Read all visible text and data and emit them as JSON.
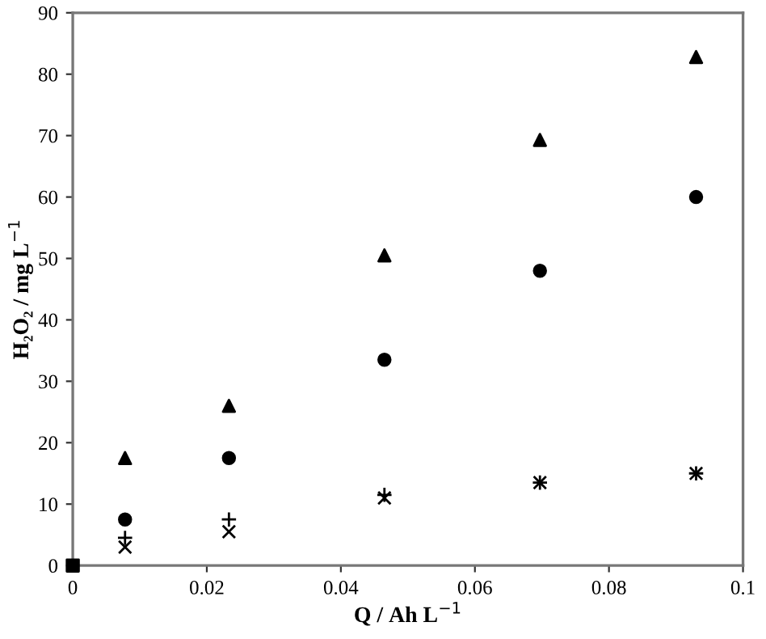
{
  "chart_data": {
    "type": "scatter",
    "xlabel": "Q / Ah L$^{−1}$",
    "ylabel": "H₂O₂ / mg L$^{−1}$",
    "x": [
      0.0078,
      0.0233,
      0.0465,
      0.0697,
      0.093
    ],
    "series": [
      {
        "color": "#000000",
        "marker": "triangle",
        "values": [
          17.5,
          26,
          50.5,
          69.3,
          82.8
        ]
      },
      {
        "color": "#000000",
        "marker": "circle",
        "values": [
          7.5,
          17.5,
          33.5,
          48,
          60
        ]
      },
      {
        "color": "#000000",
        "marker": "plus",
        "values": [
          4.5,
          7.5,
          11.5,
          13.5,
          15
        ]
      },
      {
        "color": "#000000",
        "marker": "cross",
        "values": [
          3,
          5.5,
          11,
          13.5,
          15
        ]
      },
      {
        "color": "#000000",
        "marker": "square",
        "x": [
          0
        ],
        "values": [
          0
        ]
      }
    ],
    "xlim": [
      0,
      0.1
    ],
    "ylim": [
      0,
      90
    ],
    "xticks": [
      0,
      0.02,
      0.04,
      0.06,
      0.08,
      0.1
    ],
    "yticks": [
      0,
      10,
      20,
      30,
      40,
      50,
      60,
      70,
      80,
      90
    ],
    "grid": false,
    "legend": false
  }
}
